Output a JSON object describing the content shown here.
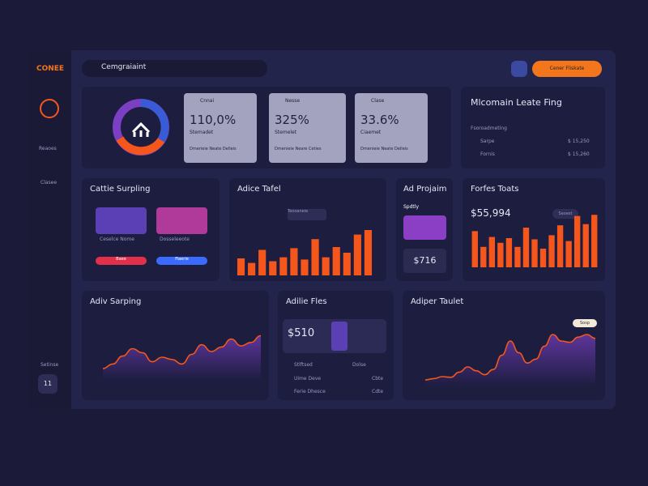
{
  "sidebar": {
    "logo": "CONEE",
    "items": [
      "Reaoes",
      "Clasee"
    ],
    "footer": "Setinse",
    "badge": "11"
  },
  "header": {
    "search": "Cemgraiaint",
    "button": "Cener Fliskate"
  },
  "overview": {
    "stats": [
      {
        "label": "Cnnai",
        "value": "110,0%",
        "note": "Stemadet",
        "detail": "Dmerieie Neate Delleis"
      },
      {
        "label": "Nesse",
        "value": "325%",
        "note": "Stemelet",
        "detail": "Dmenieie Neare Ceties"
      },
      {
        "label": "Clase",
        "value": "33.6%",
        "note": "Ciaemet",
        "detail": "Dmenieie Neate Delleis"
      }
    ]
  },
  "summary": {
    "title": "Mlcomain Leate Fing",
    "subtitle": "Fsoroadmeting",
    "rows": [
      {
        "label": "Sarpe",
        "value": "$ 15,250"
      },
      {
        "label": "Fornis",
        "value": "$ 15,260"
      }
    ]
  },
  "sampling": {
    "title": "Cattie Surpling",
    "people": [
      {
        "name": "Ceselce Nome",
        "button": "Baee"
      },
      {
        "name": "Dosseleeote",
        "button": "Fiaerie"
      }
    ]
  },
  "tafel": {
    "title": "Adice Tafel",
    "badge": "Teooaneie",
    "chart": {
      "type": "bar",
      "color": "#f4561c",
      "ylim": [
        0,
        100
      ],
      "values": [
        30,
        22,
        45,
        25,
        32,
        48,
        28,
        64,
        32,
        50,
        40,
        72,
        80
      ]
    }
  },
  "project": {
    "title": "Ad Projaim",
    "label": "Spdtly",
    "value": "$716"
  },
  "totals": {
    "title": "Forfes Toats",
    "value": "$55,994",
    "badge": "Seoest",
    "chart": {
      "type": "bar",
      "color": "#f4561c",
      "ylim": [
        0,
        100
      ],
      "values": [
        62,
        35,
        52,
        42,
        50,
        35,
        68,
        48,
        32,
        55,
        72,
        45,
        88,
        74,
        90
      ]
    }
  },
  "sarping": {
    "title": "Adiv Sarping",
    "chart": {
      "type": "line",
      "color": "#f4561c",
      "ylim": [
        0,
        100
      ],
      "values": [
        20,
        28,
        42,
        55,
        48,
        32,
        40,
        36,
        28,
        45,
        62,
        50,
        58,
        72,
        60,
        66,
        78
      ]
    }
  },
  "files": {
    "title": "Adilie Fles",
    "value": "$510",
    "rows": [
      {
        "label": "Stlftsed",
        "value": "Dolse"
      },
      {
        "label": "Uime Deve",
        "value": "Cbte"
      },
      {
        "label": "Ferie Dhesce",
        "value": "Cdte"
      }
    ]
  },
  "taulet": {
    "title": "Adiper Taulet",
    "badge": "Sosp",
    "chart": {
      "type": "line",
      "color": "#f4561c",
      "ylim": [
        0,
        100
      ],
      "values": [
        10,
        12,
        15,
        14,
        22,
        30,
        24,
        18,
        26,
        48,
        70,
        52,
        36,
        42,
        62,
        80,
        70,
        68,
        76,
        80,
        74
      ]
    }
  }
}
